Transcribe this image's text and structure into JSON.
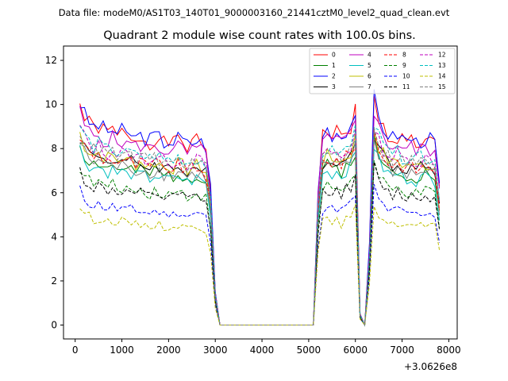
{
  "chart_data": {
    "type": "line",
    "suptitle": "Data file: modeM0/AS1T03_140T01_9000003160_21441cztM0_level2_quad_clean.evt",
    "title": "Quadrant 2 module wise count rates with 100.0s bins.",
    "xlabel": "",
    "ylabel": "",
    "x_offset_label": "+3.0626e8",
    "xlim": [
      -250,
      8180
    ],
    "ylim": [
      -0.63,
      12.65
    ],
    "xticks": [
      0,
      1000,
      2000,
      3000,
      4000,
      5000,
      6000,
      7000,
      8000
    ],
    "yticks": [
      0,
      2,
      4,
      6,
      8,
      10,
      12
    ],
    "legend_position": "top-right",
    "grid": false,
    "x_profile": [
      100,
      200,
      300,
      400,
      500,
      600,
      700,
      800,
      900,
      1000,
      1100,
      1200,
      1300,
      1400,
      1500,
      1600,
      1700,
      1800,
      1900,
      2000,
      2100,
      2200,
      2300,
      2400,
      2500,
      2600,
      2700,
      2800,
      2900,
      3000,
      3100,
      3200,
      3300,
      3400,
      3500,
      3600,
      3700,
      3800,
      3900,
      4000,
      4100,
      4200,
      4300,
      4400,
      4500,
      4600,
      4700,
      4800,
      4900,
      5000,
      5100,
      5200,
      5300,
      5400,
      5500,
      5600,
      5700,
      5800,
      5900,
      6000,
      6100,
      6200,
      6300,
      6400,
      6500,
      6600,
      6700,
      6800,
      6900,
      7000,
      7100,
      7200,
      7300,
      7400,
      7500,
      7600,
      7700,
      7800
    ],
    "profile": [
      1.0,
      0.94,
      0.91,
      0.89,
      0.9,
      0.88,
      0.87,
      0.88,
      0.86,
      0.87,
      0.85,
      0.86,
      0.84,
      0.85,
      0.84,
      0.83,
      0.85,
      0.84,
      0.82,
      0.83,
      0.82,
      0.84,
      0.83,
      0.81,
      0.82,
      0.83,
      0.82,
      0.8,
      0.62,
      0.15,
      0.0,
      0.0,
      0.0,
      0.0,
      0.0,
      0.0,
      0.0,
      0.0,
      0.0,
      0.0,
      0.0,
      0.0,
      0.0,
      0.0,
      0.0,
      0.0,
      0.0,
      0.0,
      0.0,
      0.0,
      0.0,
      0.6,
      0.86,
      0.88,
      0.86,
      0.87,
      0.85,
      0.88,
      0.9,
      0.97,
      0.05,
      0.0,
      0.35,
      1.02,
      0.93,
      0.89,
      0.86,
      0.84,
      0.86,
      0.84,
      0.83,
      0.84,
      0.82,
      0.83,
      0.84,
      0.83,
      0.82,
      0.62
    ],
    "series": [
      {
        "name": "0",
        "color": "#ff0000",
        "style": "solid",
        "level": 10.0
      },
      {
        "name": "1",
        "color": "#008000",
        "style": "solid",
        "level": 8.2
      },
      {
        "name": "2",
        "color": "#0000ff",
        "style": "solid",
        "level": 10.1
      },
      {
        "name": "3",
        "color": "#000000",
        "style": "solid",
        "level": 8.6
      },
      {
        "name": "4",
        "color": "#bf00bf",
        "style": "solid",
        "level": 9.6
      },
      {
        "name": "5",
        "color": "#00bfbf",
        "style": "solid",
        "level": 8.0
      },
      {
        "name": "6",
        "color": "#bfbf00",
        "style": "solid",
        "level": 8.7
      },
      {
        "name": "7",
        "color": "#808080",
        "style": "solid",
        "level": 8.3
      },
      {
        "name": "8",
        "color": "#ff0000",
        "style": "dashed",
        "level": 8.6
      },
      {
        "name": "9",
        "color": "#008000",
        "style": "dashed",
        "level": 7.2
      },
      {
        "name": "10",
        "color": "#0000ff",
        "style": "dashed",
        "level": 6.1
      },
      {
        "name": "11",
        "color": "#000000",
        "style": "dashed",
        "level": 7.0
      },
      {
        "name": "12",
        "color": "#bf00bf",
        "style": "dashed",
        "level": 9.0
      },
      {
        "name": "13",
        "color": "#00bfbf",
        "style": "dashed",
        "level": 9.1
      },
      {
        "name": "14",
        "color": "#bfbf00",
        "style": "dashed",
        "level": 5.4
      },
      {
        "name": "15",
        "color": "#808080",
        "style": "dashed",
        "level": 8.9
      }
    ]
  }
}
